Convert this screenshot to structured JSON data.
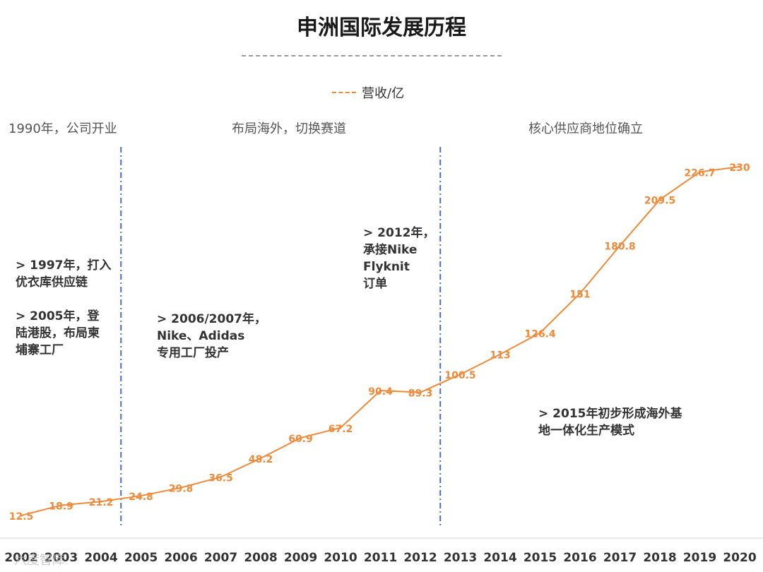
{
  "title": "申洲国际发展历程",
  "legend": {
    "label": "营收/亿",
    "color": "#f08a3a"
  },
  "eras": [
    {
      "label": "1990年，公司开业"
    },
    {
      "label": "布局海外，切换赛道"
    },
    {
      "label": "核心供应商地位确立"
    }
  ],
  "annotations": [
    "> 1997年，打入\n优衣库供应链",
    ">  2005年，登\n陆港股，布局柬\n埔寨工厂",
    "> 2006/2007年，\nNike、Adidas\n专用工厂投产",
    "> 2012年，\n承接Nike\nFlyknit\n订单",
    "> 2015年初步形成海外基\n地一体化生产模式"
  ],
  "watermark": "六度智库",
  "chart_data": {
    "type": "line",
    "title": "申洲国际发展历程",
    "x": [
      "2002",
      "2003",
      "2004",
      "2005",
      "2006",
      "2007",
      "2008",
      "2009",
      "2010",
      "2011",
      "2012",
      "2013",
      "2014",
      "2015",
      "2016",
      "2017",
      "2018",
      "2019",
      "2020"
    ],
    "series": [
      {
        "name": "营收/亿",
        "values": [
          12.5,
          18.9,
          21.2,
          24.8,
          29.8,
          36.5,
          48.2,
          60.9,
          67.2,
          90.4,
          89.3,
          100.5,
          113,
          126.4,
          151,
          180.8,
          209.5,
          226.7,
          230
        ],
        "color": "#f08a3a"
      }
    ],
    "phase_dividers": [
      "2005",
      "2013"
    ],
    "grid": false
  }
}
